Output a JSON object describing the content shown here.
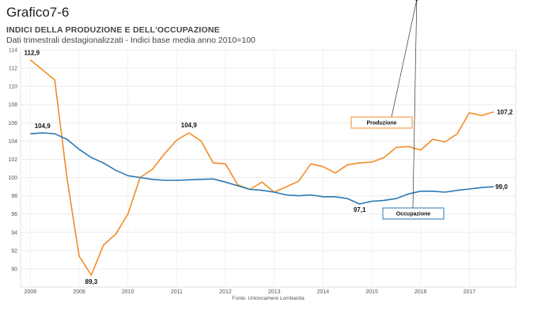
{
  "page": {
    "title": "Grafico7-6"
  },
  "chart_data": {
    "type": "line",
    "title": "INDICI DELLA PRODUZIONE E DELL'OCCUPAZIONE",
    "subtitle": "Dati trimestrali destagionalizzati - Indici base media anno 2010=100",
    "source": "Fonte: Unioncamere Lombardia",
    "xlabel": "",
    "ylabel": "",
    "ylim": [
      88,
      114
    ],
    "yticks": [
      90,
      92,
      94,
      96,
      98,
      100,
      102,
      104,
      106,
      108,
      110,
      112,
      114
    ],
    "xlim": [
      2007.8,
      2017.95
    ],
    "xticks": [
      2008,
      2009,
      2010,
      2011,
      2012,
      2013,
      2014,
      2015,
      2016,
      2017
    ],
    "grid": true,
    "x": [
      2008.0,
      2008.25,
      2008.5,
      2008.75,
      2009.0,
      2009.25,
      2009.5,
      2009.75,
      2010.0,
      2010.25,
      2010.5,
      2010.75,
      2011.0,
      2011.25,
      2011.5,
      2011.75,
      2012.0,
      2012.25,
      2012.5,
      2012.75,
      2013.0,
      2013.25,
      2013.5,
      2013.75,
      2014.0,
      2014.25,
      2014.5,
      2014.75,
      2015.0,
      2015.25,
      2015.5,
      2015.75,
      2016.0,
      2016.25,
      2016.5,
      2016.75,
      2017.0,
      2017.25,
      2017.5
    ],
    "series": [
      {
        "name": "Produzione",
        "color": "#f28c28",
        "values": [
          112.9,
          111.8,
          110.7,
          100.0,
          91.4,
          89.3,
          92.6,
          93.8,
          96.0,
          100.0,
          100.9,
          102.6,
          104.1,
          104.9,
          104.0,
          101.6,
          101.5,
          99.2,
          98.7,
          99.5,
          98.4,
          99.0,
          99.6,
          101.5,
          101.2,
          100.5,
          101.4,
          101.6,
          101.7,
          102.2,
          103.3,
          103.4,
          103.0,
          104.2,
          103.9,
          104.8,
          107.1,
          106.8,
          107.2
        ]
      },
      {
        "name": "Occupazione",
        "color": "#2878b4",
        "values": [
          104.8,
          104.9,
          104.8,
          104.2,
          103.1,
          102.2,
          101.6,
          100.8,
          100.2,
          100.0,
          99.8,
          99.7,
          99.7,
          99.75,
          99.8,
          99.85,
          99.5,
          99.1,
          98.7,
          98.6,
          98.4,
          98.1,
          98.0,
          98.1,
          97.9,
          97.9,
          97.7,
          97.1,
          97.4,
          97.5,
          97.7,
          98.2,
          98.5,
          98.5,
          98.4,
          98.6,
          98.75,
          98.9,
          99.0
        ]
      }
    ],
    "data_labels": [
      {
        "series": 0,
        "index": 0,
        "text": "112,9"
      },
      {
        "series": 0,
        "index": 5,
        "text": "89,3"
      },
      {
        "series": 0,
        "index": 13,
        "text": "104,9"
      },
      {
        "series": 0,
        "index": 38,
        "text": "107,2"
      },
      {
        "series": 1,
        "index": 1,
        "text": "104,9"
      },
      {
        "series": 1,
        "index": 27,
        "text": "97,1"
      },
      {
        "series": 1,
        "index": 38,
        "text": "99,0"
      }
    ],
    "legend": [
      {
        "label": "Produzione",
        "border": "#f28c28",
        "placement": "upper-right"
      },
      {
        "label": "Occupazione",
        "border": "#2878b4",
        "placement": "lower-right"
      }
    ]
  }
}
